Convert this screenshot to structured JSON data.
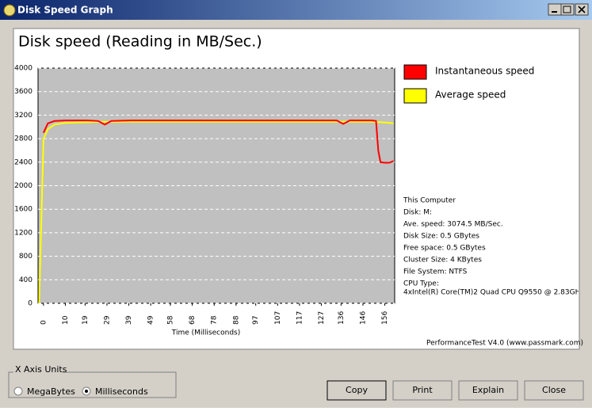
{
  "window": {
    "title": "Disk Speed Graph"
  },
  "chart_data": {
    "type": "line",
    "title": "Disk speed (Reading in MB/Sec.)",
    "x_label": "Time (Milliseconds)",
    "x": [
      -2,
      0,
      2,
      5,
      10,
      20,
      25,
      28,
      31,
      40,
      60,
      80,
      100,
      120,
      134,
      137,
      140,
      150,
      152,
      153,
      154,
      156,
      158,
      160
    ],
    "series": [
      {
        "name": "Instantaneous speed",
        "color": "#ff0000",
        "values": [
          null,
          2900,
          3060,
          3100,
          3110,
          3110,
          3100,
          3040,
          3100,
          3110,
          3110,
          3110,
          3110,
          3110,
          3110,
          3050,
          3110,
          3110,
          3100,
          2600,
          2400,
          2390,
          2390,
          2420
        ]
      },
      {
        "name": "Average speed",
        "color": "#ffff00",
        "values": [
          0,
          2800,
          2960,
          3040,
          3070,
          3080,
          3085,
          3085,
          3085,
          3090,
          3090,
          3090,
          3090,
          3090,
          3090,
          3090,
          3090,
          3090,
          3085,
          3080,
          3080,
          3075,
          3070,
          3060
        ]
      }
    ],
    "xlim": [
      -2.5,
      160.5
    ],
    "xticks": [
      0,
      10,
      19,
      29,
      39,
      49,
      58,
      68,
      78,
      88,
      97,
      107,
      117,
      127,
      136,
      146,
      156
    ],
    "ylim": [
      0,
      4000
    ],
    "yticks": [
      0,
      400,
      800,
      1200,
      1600,
      2000,
      2400,
      2800,
      3200,
      3600,
      4000
    ],
    "grid": true,
    "legend": "right"
  },
  "info": {
    "lines": [
      "This Computer",
      "Disk: M:",
      "Ave. speed: 3074.5 MB/Sec.",
      "Disk Size: 0.5 GBytes",
      "Free space: 0.5 GBytes",
      "Cluster Size: 4 KBytes",
      "File System: NTFS",
      "CPU Type:",
      "4xIntel(R) Core(TM)2 Quad CPU Q9550 @ 2.83GHz"
    ]
  },
  "footer": "PerformanceTest V4.0 (www.passmark.com)",
  "x_axis_units": {
    "label": "X Axis Units",
    "options": [
      "MegaBytes",
      "Milliseconds"
    ],
    "selected": 1
  },
  "buttons": [
    "Copy",
    "Print",
    "Explain",
    "Close"
  ]
}
